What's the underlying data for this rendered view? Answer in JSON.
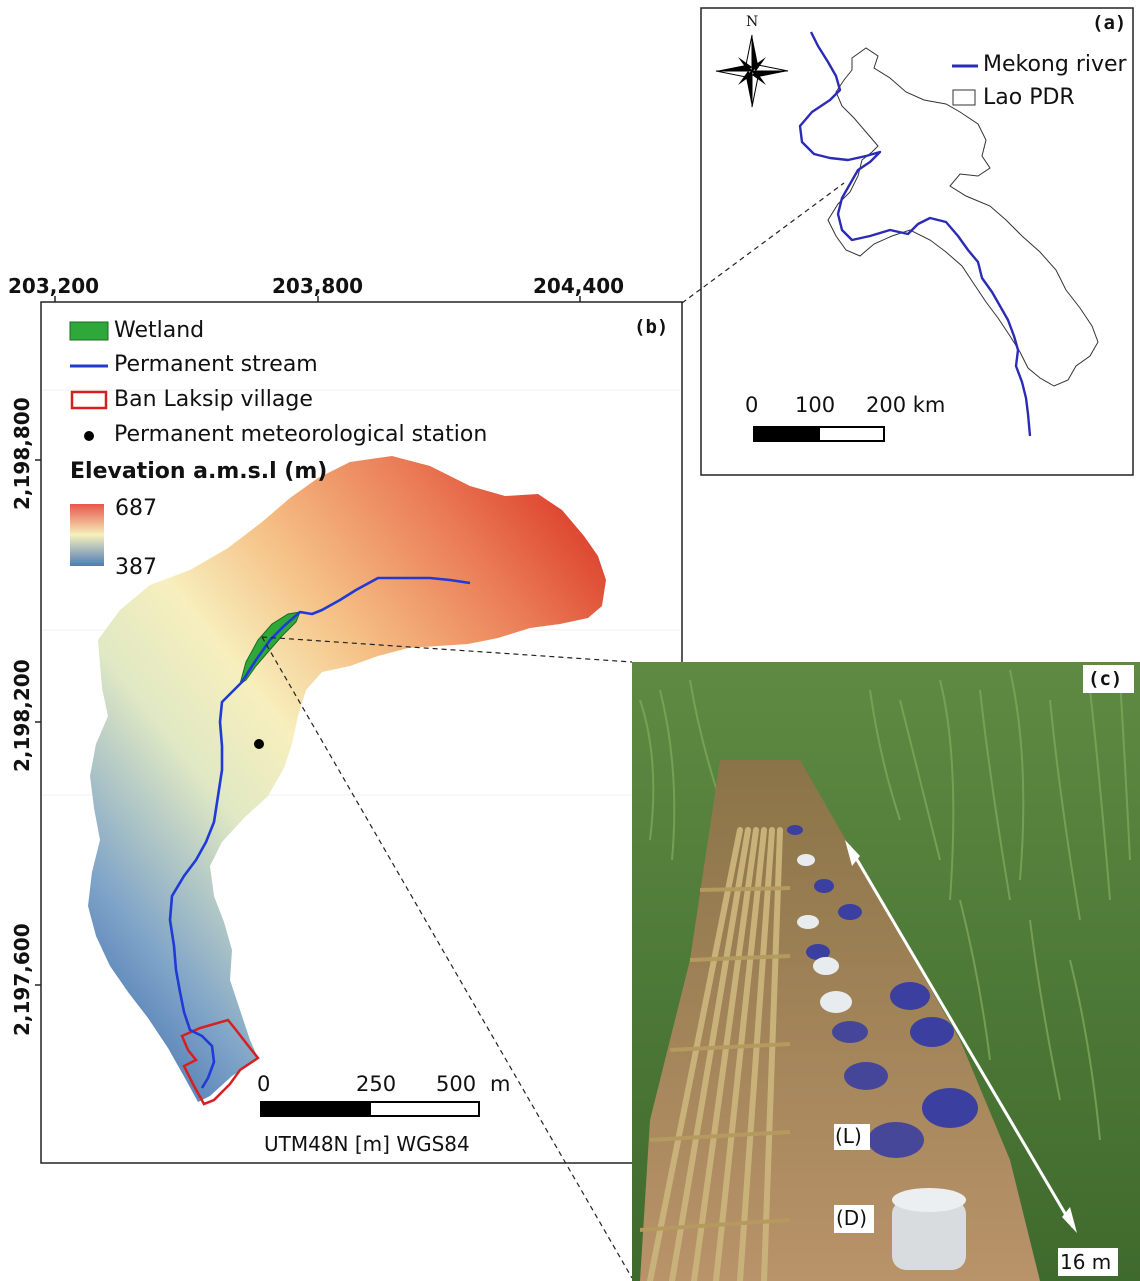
{
  "panel_a": {
    "label": "(a)",
    "north_label": "N",
    "legend": [
      {
        "label": "Mekong river",
        "symbol": "line",
        "color": "#2b2bb5"
      },
      {
        "label": "Lao PDR",
        "symbol": "box",
        "color": "#ffffff"
      }
    ],
    "scale_ticks": [
      "0",
      "100",
      "200 km"
    ]
  },
  "panel_b": {
    "label": "(b)",
    "x_ticks": [
      "203,200",
      "203,800",
      "204,400"
    ],
    "y_ticks": [
      "2,198,800",
      "2,198,200",
      "2,197,600"
    ],
    "legend": [
      {
        "label": "Wetland",
        "symbol": "filled-box",
        "color": "#2fa83a"
      },
      {
        "label": "Permanent stream",
        "symbol": "line",
        "color": "#1f3ad6"
      },
      {
        "label": "Ban Laksip village",
        "symbol": "outline-box",
        "color": "#d62020"
      },
      {
        "label": "Permanent meteorological station",
        "symbol": "dot",
        "color": "#000000"
      }
    ],
    "elevation_title": "Elevation a.m.s.l (m)",
    "elevation_max": "687",
    "elevation_min": "387",
    "scale_ticks": [
      "0",
      "250",
      "500",
      "m"
    ],
    "crs": "UTM48N [m] WGS84"
  },
  "panel_c": {
    "label": "(c)",
    "label_L": "(L)",
    "label_D": "(D)",
    "distance": "16 m"
  },
  "colors": {
    "elev_high": "#d7301f",
    "elev_mid": "#f6efb8",
    "elev_low": "#4575b4",
    "mekong": "#2b2bb5",
    "stream": "#1f3ad6",
    "wetland": "#2fa83a",
    "village": "#d62020"
  }
}
